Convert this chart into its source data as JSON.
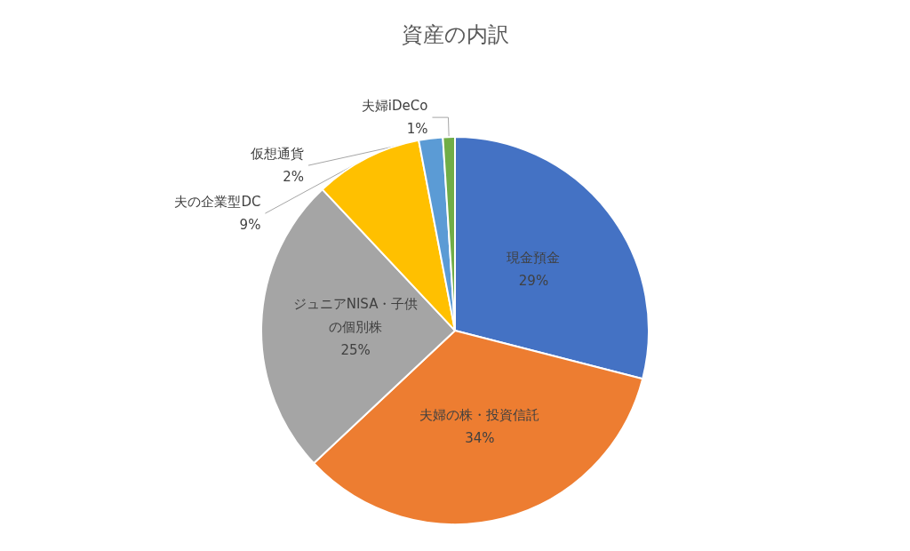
{
  "chart_data": {
    "type": "pie",
    "title": "資産の内訳",
    "categories": [
      "現金預金",
      "夫婦の株・投資信託",
      "ジュニアNISA・子供の個別株",
      "夫の企業型DC",
      "仮想通貨",
      "夫婦iDeCo"
    ],
    "values": [
      29,
      34,
      25,
      9,
      2,
      1
    ],
    "value_labels": [
      "29%",
      "34%",
      "25%",
      "9%",
      "2%",
      "1%"
    ],
    "colors": [
      "#4472c4",
      "#ed7d31",
      "#a5a5a5",
      "#ffc000",
      "#5b9bd5",
      "#70ad47"
    ],
    "legend": false
  }
}
